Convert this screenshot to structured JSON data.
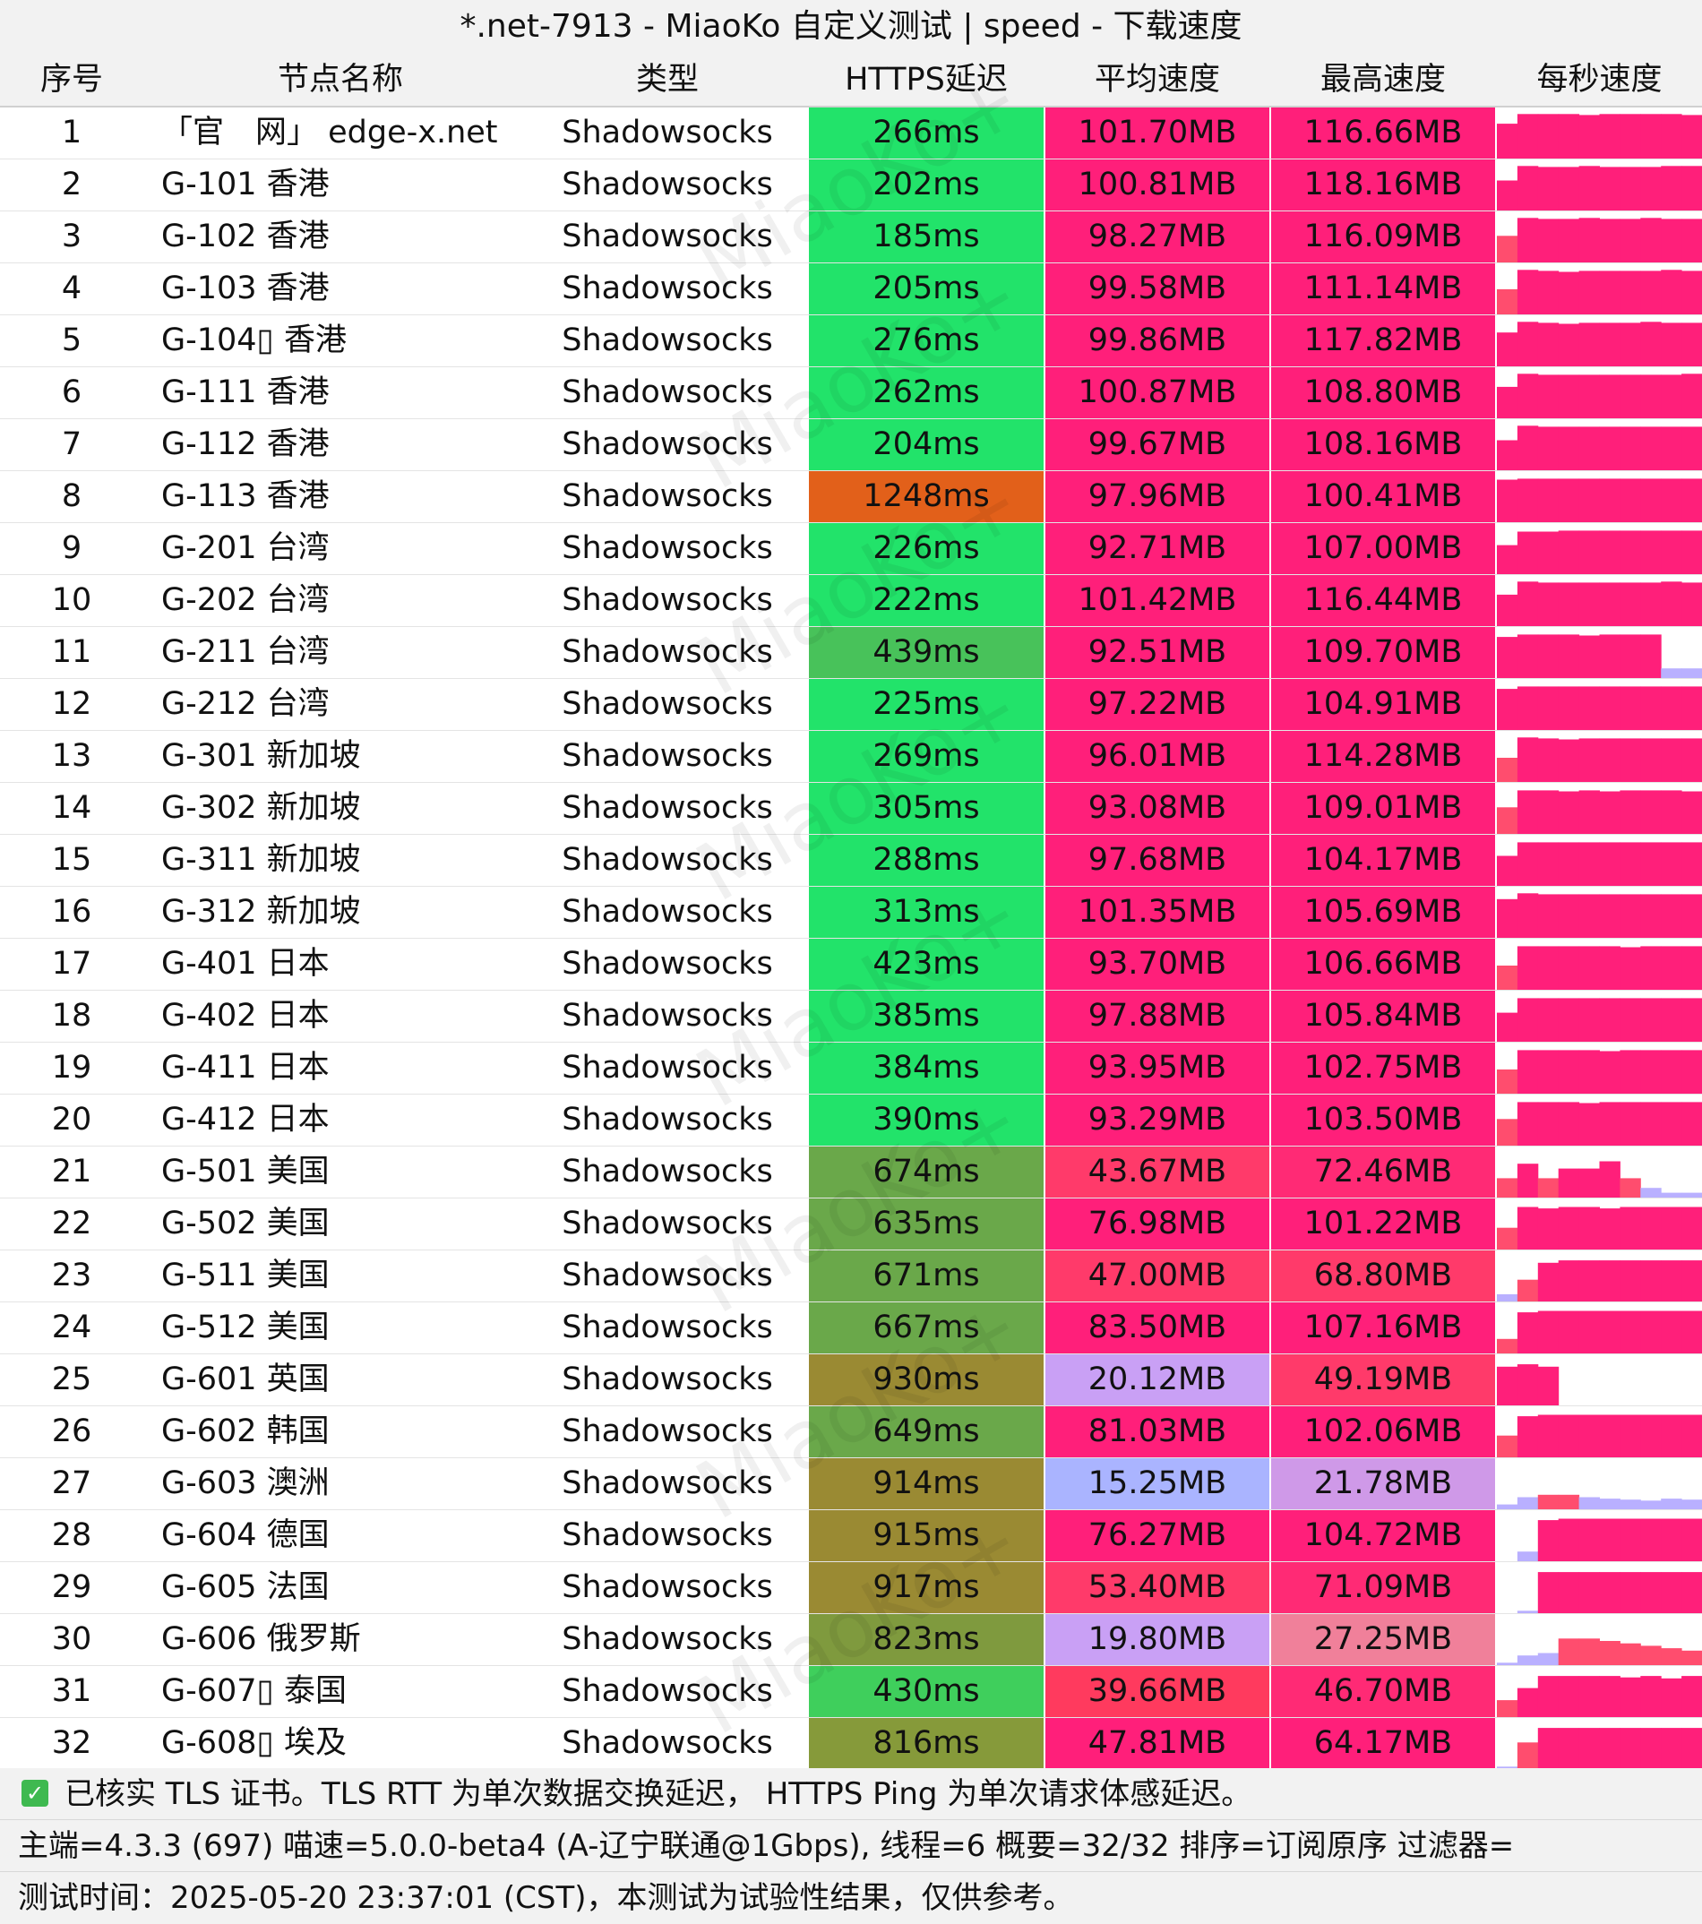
{
  "title": "*.net-7913 - MiaoKo 自定义测试 | speed - 下载速度",
  "watermark": "MiaoKo+",
  "columns": {
    "idx": "序号",
    "name": "节点名称",
    "type": "类型",
    "latency": "HTTPS延迟",
    "avg_speed": "平均速度",
    "max_speed": "最高速度",
    "per_second": "每秒速度"
  },
  "rows": [
    {
      "idx": "1",
      "name": "「官　网」 edge-x.net",
      "type": "Shadowsocks",
      "latency": "266ms",
      "avg": "101.70MB",
      "max": "116.66MB",
      "lat_color": "#22e36a",
      "avg_color": "#ff1f7a",
      "max_color": "#ff1f7a",
      "spark": [
        0.72,
        0.92,
        0.92,
        0.92,
        0.9,
        0.92,
        0.92,
        0.92,
        0.92,
        0.9
      ]
    },
    {
      "idx": "2",
      "name": "G-101 香港",
      "type": "Shadowsocks",
      "latency": "202ms",
      "avg": "100.81MB",
      "max": "118.16MB",
      "lat_color": "#22e36a",
      "avg_color": "#ff1f7a",
      "max_color": "#ff1f7a",
      "spark": [
        0.62,
        0.92,
        0.9,
        0.9,
        0.92,
        0.9,
        0.9,
        0.9,
        0.92,
        0.92
      ]
    },
    {
      "idx": "3",
      "name": "G-102 香港",
      "type": "Shadowsocks",
      "latency": "185ms",
      "avg": "98.27MB",
      "max": "116.09MB",
      "lat_color": "#22e36a",
      "avg_color": "#ff1f7a",
      "max_color": "#ff1f7a",
      "spark": [
        0.55,
        0.92,
        0.9,
        0.9,
        0.92,
        0.9,
        0.9,
        0.92,
        0.9,
        0.9
      ]
    },
    {
      "idx": "4",
      "name": "G-103 香港",
      "type": "Shadowsocks",
      "latency": "205ms",
      "avg": "99.58MB",
      "max": "111.14MB",
      "lat_color": "#22e36a",
      "avg_color": "#ff1f7a",
      "max_color": "#ff1f7a",
      "spark": [
        0.52,
        0.92,
        0.9,
        0.88,
        0.9,
        0.9,
        0.9,
        0.9,
        0.92,
        0.9
      ]
    },
    {
      "idx": "5",
      "name": "G-104▯ 香港",
      "type": "Shadowsocks",
      "latency": "276ms",
      "avg": "99.86MB",
      "max": "117.82MB",
      "lat_color": "#22e36a",
      "avg_color": "#ff1f7a",
      "max_color": "#ff1f7a",
      "spark": [
        0.7,
        0.92,
        0.9,
        0.88,
        0.9,
        0.9,
        0.9,
        0.92,
        0.9,
        0.9
      ]
    },
    {
      "idx": "6",
      "name": "G-111 香港",
      "type": "Shadowsocks",
      "latency": "262ms",
      "avg": "100.87MB",
      "max": "108.80MB",
      "lat_color": "#22e36a",
      "avg_color": "#ff1f7a",
      "max_color": "#ff1f7a",
      "spark": [
        0.65,
        0.92,
        0.9,
        0.9,
        0.9,
        0.9,
        0.9,
        0.9,
        0.9,
        0.92
      ]
    },
    {
      "idx": "7",
      "name": "G-112 香港",
      "type": "Shadowsocks",
      "latency": "204ms",
      "avg": "99.67MB",
      "max": "108.16MB",
      "lat_color": "#22e36a",
      "avg_color": "#ff1f7a",
      "max_color": "#ff1f7a",
      "spark": [
        0.62,
        0.92,
        0.9,
        0.9,
        0.9,
        0.9,
        0.9,
        0.9,
        0.9,
        0.9
      ]
    },
    {
      "idx": "8",
      "name": "G-113 香港",
      "type": "Shadowsocks",
      "latency": "1248ms",
      "avg": "97.96MB",
      "max": "100.41MB",
      "lat_color": "#e2601a",
      "avg_color": "#ff1f7a",
      "max_color": "#ff1f7a",
      "spark": [
        0.88,
        0.9,
        0.9,
        0.9,
        0.9,
        0.9,
        0.9,
        0.9,
        0.9,
        0.9
      ]
    },
    {
      "idx": "9",
      "name": "G-201 台湾",
      "type": "Shadowsocks",
      "latency": "226ms",
      "avg": "92.71MB",
      "max": "107.00MB",
      "lat_color": "#22e36a",
      "avg_color": "#ff1f7a",
      "max_color": "#ff1f7a",
      "spark": [
        0.6,
        0.88,
        0.88,
        0.9,
        0.9,
        0.9,
        0.9,
        0.9,
        0.9,
        0.9
      ]
    },
    {
      "idx": "10",
      "name": "G-202 台湾",
      "type": "Shadowsocks",
      "latency": "222ms",
      "avg": "101.42MB",
      "max": "116.44MB",
      "lat_color": "#22e36a",
      "avg_color": "#ff1f7a",
      "max_color": "#ff1f7a",
      "spark": [
        0.65,
        0.92,
        0.9,
        0.9,
        0.9,
        0.9,
        0.9,
        0.9,
        0.92,
        0.9
      ]
    },
    {
      "idx": "11",
      "name": "G-211 台湾",
      "type": "Shadowsocks",
      "latency": "439ms",
      "avg": "92.51MB",
      "max": "109.70MB",
      "lat_color": "#48c25a",
      "avg_color": "#ff1f7a",
      "max_color": "#ff1f7a",
      "spark": [
        0.85,
        0.9,
        0.9,
        0.9,
        0.88,
        0.9,
        0.9,
        0.9,
        0.2,
        0.2
      ]
    },
    {
      "idx": "12",
      "name": "G-212 台湾",
      "type": "Shadowsocks",
      "latency": "225ms",
      "avg": "97.22MB",
      "max": "104.91MB",
      "lat_color": "#22e36a",
      "avg_color": "#ff1f7a",
      "max_color": "#ff1f7a",
      "spark": [
        0.85,
        0.9,
        0.9,
        0.9,
        0.9,
        0.9,
        0.9,
        0.9,
        0.9,
        0.9
      ]
    },
    {
      "idx": "13",
      "name": "G-301 新加坡",
      "type": "Shadowsocks",
      "latency": "269ms",
      "avg": "96.01MB",
      "max": "114.28MB",
      "lat_color": "#22e36a",
      "avg_color": "#ff1f7a",
      "max_color": "#ff1f7a",
      "spark": [
        0.5,
        0.92,
        0.9,
        0.88,
        0.9,
        0.9,
        0.9,
        0.9,
        0.9,
        0.9
      ]
    },
    {
      "idx": "14",
      "name": "G-302 新加坡",
      "type": "Shadowsocks",
      "latency": "305ms",
      "avg": "93.08MB",
      "max": "109.01MB",
      "lat_color": "#22e36a",
      "avg_color": "#ff1f7a",
      "max_color": "#ff1f7a",
      "spark": [
        0.55,
        0.9,
        0.9,
        0.88,
        0.9,
        0.88,
        0.9,
        0.9,
        0.9,
        0.88
      ]
    },
    {
      "idx": "15",
      "name": "G-311 新加坡",
      "type": "Shadowsocks",
      "latency": "288ms",
      "avg": "97.68MB",
      "max": "104.17MB",
      "lat_color": "#22e36a",
      "avg_color": "#ff1f7a",
      "max_color": "#ff1f7a",
      "spark": [
        0.62,
        0.9,
        0.9,
        0.9,
        0.9,
        0.9,
        0.9,
        0.9,
        0.9,
        0.9
      ]
    },
    {
      "idx": "16",
      "name": "G-312 新加坡",
      "type": "Shadowsocks",
      "latency": "313ms",
      "avg": "101.35MB",
      "max": "105.69MB",
      "lat_color": "#22e36a",
      "avg_color": "#ff1f7a",
      "max_color": "#ff1f7a",
      "spark": [
        0.8,
        0.92,
        0.9,
        0.9,
        0.9,
        0.9,
        0.9,
        0.9,
        0.9,
        0.9
      ]
    },
    {
      "idx": "17",
      "name": "G-401 日本",
      "type": "Shadowsocks",
      "latency": "423ms",
      "avg": "93.70MB",
      "max": "106.66MB",
      "lat_color": "#22e36a",
      "avg_color": "#ff1f7a",
      "max_color": "#ff1f7a",
      "spark": [
        0.5,
        0.9,
        0.9,
        0.9,
        0.9,
        0.9,
        0.88,
        0.9,
        0.9,
        0.9
      ]
    },
    {
      "idx": "18",
      "name": "G-402 日本",
      "type": "Shadowsocks",
      "latency": "385ms",
      "avg": "97.88MB",
      "max": "105.84MB",
      "lat_color": "#22e36a",
      "avg_color": "#ff1f7a",
      "max_color": "#ff1f7a",
      "spark": [
        0.6,
        0.9,
        0.9,
        0.9,
        0.9,
        0.9,
        0.9,
        0.9,
        0.9,
        0.9
      ]
    },
    {
      "idx": "19",
      "name": "G-411 日本",
      "type": "Shadowsocks",
      "latency": "384ms",
      "avg": "93.95MB",
      "max": "102.75MB",
      "lat_color": "#22e36a",
      "avg_color": "#ff1f7a",
      "max_color": "#ff1f7a",
      "spark": [
        0.5,
        0.9,
        0.9,
        0.9,
        0.9,
        0.88,
        0.9,
        0.9,
        0.9,
        0.9
      ]
    },
    {
      "idx": "20",
      "name": "G-412 日本",
      "type": "Shadowsocks",
      "latency": "390ms",
      "avg": "93.29MB",
      "max": "103.50MB",
      "lat_color": "#22e36a",
      "avg_color": "#ff1f7a",
      "max_color": "#ff1f7a",
      "spark": [
        0.55,
        0.9,
        0.9,
        0.9,
        0.88,
        0.9,
        0.9,
        0.9,
        0.9,
        0.9
      ]
    },
    {
      "idx": "21",
      "name": "G-501 美国",
      "type": "Shadowsocks",
      "latency": "674ms",
      "avg": "43.67MB",
      "max": "72.46MB",
      "lat_color": "#6aa84a",
      "avg_color": "#ff3a6a",
      "max_color": "#ff2a75",
      "spark": [
        0.4,
        0.7,
        0.4,
        0.6,
        0.6,
        0.75,
        0.4,
        0.2,
        0.1,
        0.1
      ]
    },
    {
      "idx": "22",
      "name": "G-502 美国",
      "type": "Shadowsocks",
      "latency": "635ms",
      "avg": "76.98MB",
      "max": "101.22MB",
      "lat_color": "#6aa84a",
      "avg_color": "#ff1f7a",
      "max_color": "#ff1f7a",
      "spark": [
        0.45,
        0.88,
        0.85,
        0.88,
        0.88,
        0.85,
        0.88,
        0.88,
        0.88,
        0.88
      ]
    },
    {
      "idx": "23",
      "name": "G-511 美国",
      "type": "Shadowsocks",
      "latency": "671ms",
      "avg": "47.00MB",
      "max": "68.80MB",
      "lat_color": "#6aa84a",
      "avg_color": "#ff3a6a",
      "max_color": "#ff3a6a",
      "spark": [
        0.15,
        0.45,
        0.8,
        0.85,
        0.85,
        0.85,
        0.85,
        0.85,
        0.85,
        0.85
      ]
    },
    {
      "idx": "24",
      "name": "G-512 美国",
      "type": "Shadowsocks",
      "latency": "667ms",
      "avg": "83.50MB",
      "max": "107.16MB",
      "lat_color": "#6aa84a",
      "avg_color": "#ff1f7a",
      "max_color": "#ff1f7a",
      "spark": [
        0.3,
        0.85,
        0.88,
        0.88,
        0.88,
        0.88,
        0.88,
        0.88,
        0.88,
        0.88
      ]
    },
    {
      "idx": "25",
      "name": "G-601 英国",
      "type": "Shadowsocks",
      "latency": "930ms",
      "avg": "20.12MB",
      "max": "49.19MB",
      "lat_color": "#9a8a33",
      "avg_color": "#c9a0f5",
      "max_color": "#ff3a6a",
      "spark": [
        0.8,
        0.85,
        0.8,
        0.0,
        0.0,
        0.0,
        0.0,
        0.0,
        0.0,
        0.0
      ]
    },
    {
      "idx": "26",
      "name": "G-602 韩国",
      "type": "Shadowsocks",
      "latency": "649ms",
      "avg": "81.03MB",
      "max": "102.06MB",
      "lat_color": "#6aa84a",
      "avg_color": "#ff1f7a",
      "max_color": "#ff1f7a",
      "spark": [
        0.45,
        0.85,
        0.88,
        0.88,
        0.88,
        0.88,
        0.88,
        0.88,
        0.88,
        0.88
      ]
    },
    {
      "idx": "27",
      "name": "G-603 澳洲",
      "type": "Shadowsocks",
      "latency": "914ms",
      "avg": "15.25MB",
      "max": "21.78MB",
      "lat_color": "#9a8a33",
      "avg_color": "#aab4ff",
      "max_color": "#cf99e8",
      "spark": [
        0.1,
        0.25,
        0.3,
        0.3,
        0.25,
        0.22,
        0.2,
        0.18,
        0.22,
        0.2
      ]
    },
    {
      "idx": "28",
      "name": "G-604 德国",
      "type": "Shadowsocks",
      "latency": "915ms",
      "avg": "76.27MB",
      "max": "104.72MB",
      "lat_color": "#9a8a33",
      "avg_color": "#ff1f7a",
      "max_color": "#ff1f7a",
      "spark": [
        0.0,
        0.2,
        0.85,
        0.88,
        0.88,
        0.88,
        0.88,
        0.88,
        0.88,
        0.88
      ]
    },
    {
      "idx": "29",
      "name": "G-605 法国",
      "type": "Shadowsocks",
      "latency": "917ms",
      "avg": "53.40MB",
      "max": "71.09MB",
      "lat_color": "#9a8a33",
      "avg_color": "#ff3a6a",
      "max_color": "#ff2a75",
      "spark": [
        0.0,
        0.05,
        0.85,
        0.85,
        0.85,
        0.85,
        0.85,
        0.85,
        0.85,
        0.85
      ]
    },
    {
      "idx": "30",
      "name": "G-606 俄罗斯",
      "type": "Shadowsocks",
      "latency": "823ms",
      "avg": "19.80MB",
      "max": "27.25MB",
      "lat_color": "#7f9a3e",
      "avg_color": "#c9a0f5",
      "max_color": "#f0809a",
      "spark": [
        0.05,
        0.2,
        0.25,
        0.55,
        0.55,
        0.5,
        0.45,
        0.4,
        0.35,
        0.3
      ]
    },
    {
      "idx": "31",
      "name": "G-607▯ 泰国",
      "type": "Shadowsocks",
      "latency": "430ms",
      "avg": "39.66MB",
      "max": "46.70MB",
      "lat_color": "#3fcf5c",
      "avg_color": "#ff3a5e",
      "max_color": "#ff2a75",
      "spark": [
        0.35,
        0.6,
        0.85,
        0.85,
        0.85,
        0.85,
        0.82,
        0.85,
        0.8,
        0.85
      ]
    },
    {
      "idx": "32",
      "name": "G-608▯ 埃及",
      "type": "Shadowsocks",
      "latency": "816ms",
      "avg": "47.81MB",
      "max": "64.17MB",
      "lat_color": "#869a3a",
      "avg_color": "#ff1f7a",
      "max_color": "#ff1f7a",
      "spark": [
        0.05,
        0.55,
        0.85,
        0.85,
        0.85,
        0.85,
        0.85,
        0.85,
        0.85,
        0.85
      ]
    }
  ],
  "spark_color": "#ff1f7a",
  "footer": {
    "check_icon": "checkbox-checked-icon",
    "line1": "已核实 TLS 证书。TLS RTT 为单次数据交换延迟， HTTPS Ping 为单次请求体感延迟。",
    "line2": "主端=4.3.3 (697) 喵速=5.0.0-beta4 (A-辽宁联通@1Gbps), 线程=6 概要=32/32 排序=订阅原序 过滤器=",
    "line3": "测试时间：2025-05-20 23:37:01 (CST)，本测试为试验性结果，仅供参考。"
  }
}
